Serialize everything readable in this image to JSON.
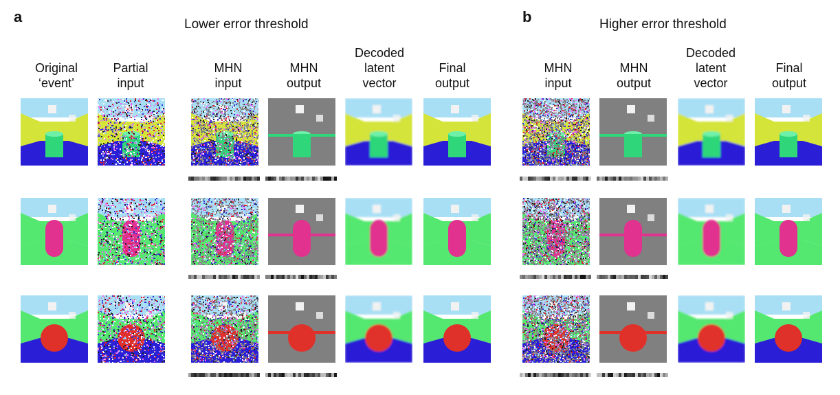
{
  "panels": [
    {
      "letter": "a",
      "title": "Lower error threshold"
    },
    {
      "letter": "b",
      "title": "Higher error threshold"
    }
  ],
  "columns_a": [
    "Original\n‘event’",
    "Partial\ninput",
    "MHN\ninput",
    "MHN\noutput",
    "Decoded\nlatent\nvector",
    "Final\noutput"
  ],
  "columns_b": [
    "MHN\ninput",
    "MHN\noutput",
    "Decoded\nlatent\nvector",
    "Final\noutput"
  ],
  "rows": [
    {
      "object": "cylinder",
      "object_color": "#2fd67a",
      "wall_color": "#d4e43a",
      "floor_color": "#2a1fd6",
      "sky_color": "#a9dff5"
    },
    {
      "object": "capsule",
      "object_color": "#e0328e",
      "wall_color": "#55e870",
      "floor_color": "#55e870",
      "sky_color": "#a9dff5"
    },
    {
      "object": "sphere",
      "object_color": "#e0302a",
      "wall_color": "#55e870",
      "floor_color": "#2a1fd6",
      "sky_color": "#a9dff5"
    }
  ],
  "colors": {
    "masked_gray": "#808080",
    "code_dark": "#222222",
    "code_light": "#bbbbbb"
  }
}
